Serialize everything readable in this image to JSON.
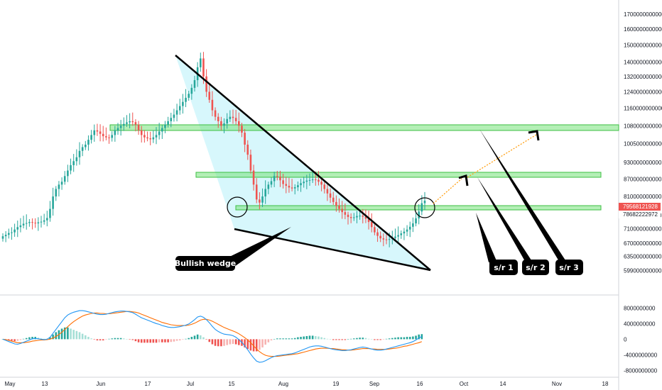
{
  "chart_data": [
    {
      "type": "candlestick",
      "title": "",
      "xlabel": "",
      "ylabel": "",
      "x_ticks": [
        "May",
        "13",
        "Jun",
        "17",
        "Jul",
        "15",
        "Aug",
        "19",
        "Sep",
        "16",
        "Oct",
        "14",
        "Nov",
        "18"
      ],
      "y_ticks": [
        "1700000000000",
        "1600000000000",
        "1500000000000",
        "1400000000000",
        "1320000000000",
        "1240000000000",
        "1160000000000",
        "1080000000000",
        "1005000000000",
        "930000000000",
        "870000000000",
        "810000000000",
        "750000000000",
        "710000000000",
        "670000000000",
        "635000000000",
        "599000000000"
      ],
      "log_scale": true,
      "ylim": [
        560000000000,
        1750000000000
      ],
      "closes": [
        689000000000,
        693000000000,
        698000000000,
        700000000000,
        708000000000,
        715000000000,
        720000000000,
        725000000000,
        727000000000,
        730000000000,
        728000000000,
        726000000000,
        729000000000,
        731000000000,
        735000000000,
        742000000000,
        770000000000,
        810000000000,
        835000000000,
        850000000000,
        860000000000,
        880000000000,
        900000000000,
        920000000000,
        935000000000,
        950000000000,
        975000000000,
        990000000000,
        1000000000000,
        1020000000000,
        1040000000000,
        1060000000000,
        1055000000000,
        1045000000000,
        1035000000000,
        1030000000000,
        1028000000000,
        1040000000000,
        1060000000000,
        1070000000000,
        1080000000000,
        1088000000000,
        1095000000000,
        1100000000000,
        1096000000000,
        1085000000000,
        1060000000000,
        1040000000000,
        1030000000000,
        1026000000000,
        1022000000000,
        1030000000000,
        1040000000000,
        1055000000000,
        1070000000000,
        1085000000000,
        1100000000000,
        1115000000000,
        1130000000000,
        1150000000000,
        1170000000000,
        1190000000000,
        1210000000000,
        1230000000000,
        1260000000000,
        1300000000000,
        1370000000000,
        1420000000000,
        1320000000000,
        1240000000000,
        1200000000000,
        1150000000000,
        1120000000000,
        1100000000000,
        1080000000000,
        1090000000000,
        1110000000000,
        1120000000000,
        1115000000000,
        1100000000000,
        1080000000000,
        1050000000000,
        1000000000000,
        960000000000,
        900000000000,
        850000000000,
        800000000000,
        790000000000,
        810000000000,
        835000000000,
        850000000000,
        862000000000,
        880000000000,
        878000000000,
        865000000000,
        852000000000,
        846000000000,
        840000000000,
        837000000000,
        841000000000,
        848000000000,
        855000000000,
        860000000000,
        864000000000,
        866000000000,
        868000000000,
        867000000000,
        860000000000,
        850000000000,
        835000000000,
        820000000000,
        806000000000,
        792000000000,
        780000000000,
        770000000000,
        760000000000,
        752000000000,
        745000000000,
        742000000000,
        744000000000,
        748000000000,
        749000000000,
        746000000000,
        740000000000,
        730000000000,
        715000000000,
        700000000000,
        690000000000,
        683000000000,
        680000000000,
        679000000000,
        681000000000,
        684000000000,
        688000000000,
        692000000000,
        697000000000,
        702000000000,
        708000000000,
        716000000000,
        726000000000,
        741000000000,
        762000000000,
        788000000000,
        796000000000
      ],
      "macd_ticks": [
        "8000000000",
        "4000000000",
        "0",
        "-4000000000",
        "-8000000000"
      ],
      "macd_ylim": [
        -9000000000,
        9500000000
      ],
      "macd": [
        0,
        -300000000,
        -600000000,
        -900000000,
        -1200000000,
        -1300000000,
        -1100000000,
        -800000000,
        -500000000,
        -200000000,
        100000000,
        200000000,
        100000000,
        0,
        -100000000,
        0,
        500000000,
        1500000000,
        2500000000,
        3500000000,
        4500000000,
        5500000000,
        6200000000,
        6600000000,
        6900000000,
        7100000000,
        7300000000,
        7300000000,
        7200000000,
        7000000000,
        6800000000,
        6600000000,
        6400000000,
        6300000000,
        6300000000,
        6400000000,
        6600000000,
        6800000000,
        7000000000,
        7100000000,
        7200000000,
        7200000000,
        7100000000,
        7000000000,
        6800000000,
        6400000000,
        5900000000,
        5500000000,
        5200000000,
        4900000000,
        4600000000,
        4300000000,
        4000000000,
        3800000000,
        3500000000,
        3300000000,
        3100000000,
        3000000000,
        3000000000,
        3100000000,
        3200000000,
        3400000000,
        3600000000,
        3900000000,
        4400000000,
        5000000000,
        5700000000,
        5900000000,
        5600000000,
        5000000000,
        4200000000,
        3300000000,
        2500000000,
        2000000000,
        1600000000,
        1300000000,
        1200000000,
        1100000000,
        900000000,
        500000000,
        -100000000,
        -800000000,
        -1700000000,
        -2700000000,
        -3800000000,
        -4800000000,
        -5600000000,
        -5900000000,
        -5800000000,
        -5500000000,
        -5100000000,
        -4700000000,
        -4400000000,
        -4200000000,
        -4100000000,
        -4000000000,
        -3900000000,
        -3800000000,
        -3700000000,
        -3500000000,
        -3200000000,
        -2900000000,
        -2600000000,
        -2300000000,
        -2000000000,
        -1800000000,
        -1700000000,
        -1700000000,
        -1800000000,
        -2000000000,
        -2200000000,
        -2400000000,
        -2600000000,
        -2700000000,
        -2800000000,
        -2900000000,
        -2900000000,
        -2800000000,
        -2700000000,
        -2500000000,
        -2300000000,
        -2100000000,
        -2000000000,
        -2100000000,
        -2300000000,
        -2500000000,
        -2700000000,
        -2800000000,
        -2800000000,
        -2700000000,
        -2500000000,
        -2300000000,
        -2100000000,
        -1900000000,
        -1700000000,
        -1500000000,
        -1300000000,
        -1100000000,
        -900000000,
        -600000000,
        -200000000,
        300000000,
        700000000
      ],
      "signal": [
        0,
        -100000000,
        -300000000,
        -500000000,
        -700000000,
        -900000000,
        -900000000,
        -900000000,
        -800000000,
        -700000000,
        -500000000,
        -400000000,
        -300000000,
        -200000000,
        -200000000,
        -100000000,
        0,
        300000000,
        700000000,
        1200000000,
        1800000000,
        2500000000,
        3200000000,
        3900000000,
        4500000000,
        5000000000,
        5500000000,
        5900000000,
        6200000000,
        6400000000,
        6600000000,
        6700000000,
        6700000000,
        6600000000,
        6600000000,
        6500000000,
        6500000000,
        6600000000,
        6700000000,
        6800000000,
        6900000000,
        7000000000,
        7100000000,
        7100000000,
        7000000000,
        6900000000,
        6700000000,
        6400000000,
        6100000000,
        5800000000,
        5500000000,
        5200000000,
        4900000000,
        4600000000,
        4300000000,
        4100000000,
        3900000000,
        3700000000,
        3600000000,
        3500000000,
        3500000000,
        3500000000,
        3500000000,
        3600000000,
        3800000000,
        4100000000,
        4500000000,
        4900000000,
        5100000000,
        5100000000,
        4900000000,
        4600000000,
        4200000000,
        3800000000,
        3400000000,
        3000000000,
        2700000000,
        2400000000,
        2100000000,
        1800000000,
        1400000000,
        900000000,
        400000000,
        -200000000,
        -900000000,
        -1700000000,
        -2500000000,
        -3200000000,
        -3700000000,
        -4100000000,
        -4300000000,
        -4400000000,
        -4400000000,
        -4400000000,
        -4300000000,
        -4200000000,
        -4100000000,
        -4000000000,
        -3900000000,
        -3800000000,
        -3700000000,
        -3500000000,
        -3300000000,
        -3100000000,
        -2900000000,
        -2700000000,
        -2500000000,
        -2400000000,
        -2300000000,
        -2300000000,
        -2300000000,
        -2400000000,
        -2400000000,
        -2500000000,
        -2600000000,
        -2700000000,
        -2700000000,
        -2800000000,
        -2800000000,
        -2700000000,
        -2600000000,
        -2500000000,
        -2400000000,
        -2400000000,
        -2400000000,
        -2500000000,
        -2500000000,
        -2600000000,
        -2600000000,
        -2600000000,
        -2600000000,
        -2500000000,
        -2400000000,
        -2300000000,
        -2200000000,
        -2000000000,
        -1800000000,
        -1700000000,
        -1500000000,
        -1300000000,
        -1100000000,
        -900000000,
        -600000000
      ],
      "price_labels": {
        "current": "79568121928",
        "reference": "78682222972"
      },
      "annotations": [
        "Bullish wedge",
        "s/r 1",
        "s/r 2",
        "s/r 3"
      ],
      "colors": {
        "up": "#26a69a",
        "down": "#ef5350",
        "hist_up": "#26a69a",
        "hist_down": "#ef5350",
        "macd_line": "#2196f3",
        "signal_line": "#ff6d00",
        "zone": "#76e27a",
        "wedge_fill": "#c9f4fb",
        "projection": "#ff9800"
      }
    }
  ]
}
